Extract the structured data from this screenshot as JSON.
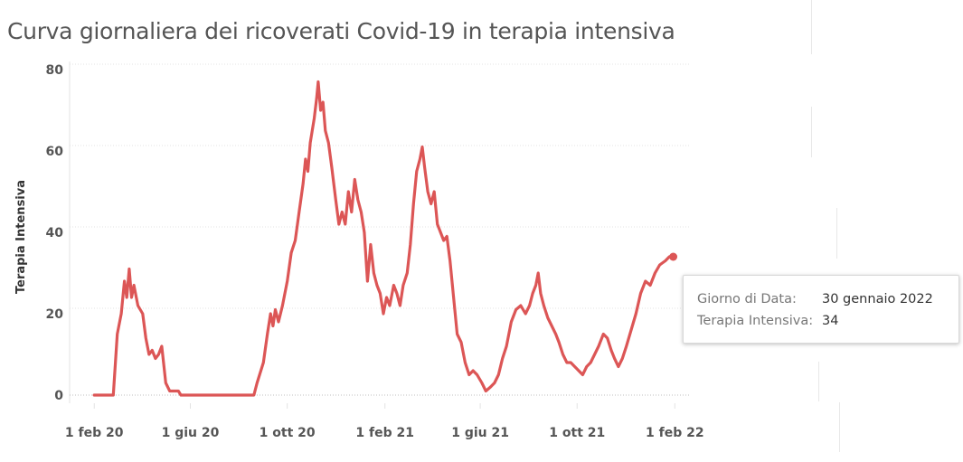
{
  "title": "Curva giornaliera dei ricoverati Covid-19 in terapia intensiva",
  "colors": {
    "line": "#dc5656",
    "grid": "#e3e3e3",
    "baseline": "#bfbfbf"
  },
  "tooltip": {
    "rows": [
      {
        "key": "Giorno di Data:",
        "value": "30 gennaio 2022"
      },
      {
        "key": "Terapia Intensiva:",
        "value": "34"
      }
    ]
  },
  "chart_data": {
    "type": "line",
    "title": "Curva giornaliera dei ricoverati Covid-19 in terapia intensiva",
    "xlabel": "",
    "ylabel": "Terapia Intensiva",
    "ylim": [
      0,
      80
    ],
    "xlim": [
      "2020-01-01",
      "2022-02-20"
    ],
    "yticks": [
      0,
      20,
      40,
      60,
      80
    ],
    "xticks": [
      {
        "date": "2020-02-01",
        "label": "1 feb 20"
      },
      {
        "date": "2020-06-01",
        "label": "1 giu 20"
      },
      {
        "date": "2020-10-01",
        "label": "1 ott 20"
      },
      {
        "date": "2021-02-01",
        "label": "1 feb 21"
      },
      {
        "date": "2021-06-01",
        "label": "1 giu 21"
      },
      {
        "date": "2021-10-01",
        "label": "1 ott 21"
      },
      {
        "date": "2022-02-01",
        "label": "1 feb 22"
      }
    ],
    "grid": true,
    "series": [
      {
        "points": [
          [
            "2020-02-01",
            0
          ],
          [
            "2020-02-20",
            0
          ],
          [
            "2020-02-25",
            0
          ],
          [
            "2020-03-01",
            15
          ],
          [
            "2020-03-06",
            20
          ],
          [
            "2020-03-10",
            28
          ],
          [
            "2020-03-13",
            24
          ],
          [
            "2020-03-16",
            31
          ],
          [
            "2020-03-19",
            24
          ],
          [
            "2020-03-22",
            27
          ],
          [
            "2020-03-27",
            22
          ],
          [
            "2020-04-02",
            20
          ],
          [
            "2020-04-06",
            14
          ],
          [
            "2020-04-10",
            10
          ],
          [
            "2020-04-14",
            11
          ],
          [
            "2020-04-18",
            9
          ],
          [
            "2020-04-22",
            10
          ],
          [
            "2020-04-26",
            12
          ],
          [
            "2020-05-01",
            3
          ],
          [
            "2020-05-06",
            1
          ],
          [
            "2020-05-12",
            1
          ],
          [
            "2020-05-17",
            1
          ],
          [
            "2020-05-20",
            0
          ],
          [
            "2020-06-10",
            0
          ],
          [
            "2020-07-15",
            0
          ],
          [
            "2020-08-15",
            0
          ],
          [
            "2020-08-20",
            0
          ],
          [
            "2020-08-24",
            3
          ],
          [
            "2020-09-01",
            8
          ],
          [
            "2020-09-06",
            15
          ],
          [
            "2020-09-10",
            20
          ],
          [
            "2020-09-13",
            17
          ],
          [
            "2020-09-16",
            21
          ],
          [
            "2020-09-20",
            18
          ],
          [
            "2020-09-25",
            22
          ],
          [
            "2020-10-01",
            28
          ],
          [
            "2020-10-06",
            35
          ],
          [
            "2020-10-11",
            38
          ],
          [
            "2020-10-16",
            45
          ],
          [
            "2020-10-21",
            52
          ],
          [
            "2020-10-24",
            58
          ],
          [
            "2020-10-27",
            55
          ],
          [
            "2020-10-30",
            62
          ],
          [
            "2020-11-04",
            68
          ],
          [
            "2020-11-07",
            73
          ],
          [
            "2020-11-09",
            77
          ],
          [
            "2020-11-12",
            70
          ],
          [
            "2020-11-15",
            72
          ],
          [
            "2020-11-18",
            65
          ],
          [
            "2020-11-22",
            62
          ],
          [
            "2020-11-26",
            56
          ],
          [
            "2020-12-01",
            48
          ],
          [
            "2020-12-05",
            42
          ],
          [
            "2020-12-09",
            45
          ],
          [
            "2020-12-13",
            42
          ],
          [
            "2020-12-17",
            50
          ],
          [
            "2020-12-21",
            45
          ],
          [
            "2020-12-25",
            53
          ],
          [
            "2020-12-29",
            48
          ],
          [
            "2021-01-02",
            45
          ],
          [
            "2021-01-06",
            40
          ],
          [
            "2021-01-10",
            28
          ],
          [
            "2021-01-14",
            37
          ],
          [
            "2021-01-18",
            30
          ],
          [
            "2021-01-22",
            27
          ],
          [
            "2021-01-26",
            25
          ],
          [
            "2021-01-30",
            20
          ],
          [
            "2021-02-03",
            24
          ],
          [
            "2021-02-07",
            22
          ],
          [
            "2021-02-12",
            27
          ],
          [
            "2021-02-16",
            25
          ],
          [
            "2021-02-20",
            22
          ],
          [
            "2021-02-24",
            27
          ],
          [
            "2021-03-01",
            30
          ],
          [
            "2021-03-05",
            37
          ],
          [
            "2021-03-09",
            47
          ],
          [
            "2021-03-13",
            55
          ],
          [
            "2021-03-17",
            58
          ],
          [
            "2021-03-20",
            61
          ],
          [
            "2021-03-23",
            56
          ],
          [
            "2021-03-27",
            50
          ],
          [
            "2021-03-31",
            47
          ],
          [
            "2021-04-04",
            50
          ],
          [
            "2021-04-08",
            42
          ],
          [
            "2021-04-12",
            40
          ],
          [
            "2021-04-16",
            38
          ],
          [
            "2021-04-20",
            39
          ],
          [
            "2021-04-24",
            33
          ],
          [
            "2021-04-28",
            25
          ],
          [
            "2021-05-03",
            15
          ],
          [
            "2021-05-08",
            13
          ],
          [
            "2021-05-13",
            8
          ],
          [
            "2021-05-18",
            5
          ],
          [
            "2021-05-23",
            6
          ],
          [
            "2021-05-28",
            5
          ],
          [
            "2021-06-03",
            3
          ],
          [
            "2021-06-08",
            1
          ],
          [
            "2021-06-14",
            2
          ],
          [
            "2021-06-19",
            3
          ],
          [
            "2021-06-24",
            5
          ],
          [
            "2021-06-29",
            9
          ],
          [
            "2021-07-04",
            12
          ],
          [
            "2021-07-10",
            18
          ],
          [
            "2021-07-16",
            21
          ],
          [
            "2021-07-22",
            22
          ],
          [
            "2021-07-28",
            20
          ],
          [
            "2021-08-02",
            22
          ],
          [
            "2021-08-06",
            25
          ],
          [
            "2021-08-10",
            27
          ],
          [
            "2021-08-13",
            30
          ],
          [
            "2021-08-16",
            25
          ],
          [
            "2021-08-20",
            22
          ],
          [
            "2021-08-25",
            19
          ],
          [
            "2021-08-30",
            17
          ],
          [
            "2021-09-04",
            15
          ],
          [
            "2021-09-08",
            13
          ],
          [
            "2021-09-13",
            10
          ],
          [
            "2021-09-18",
            8
          ],
          [
            "2021-09-23",
            8
          ],
          [
            "2021-09-28",
            7
          ],
          [
            "2021-10-03",
            6
          ],
          [
            "2021-10-08",
            5
          ],
          [
            "2021-10-13",
            7
          ],
          [
            "2021-10-18",
            8
          ],
          [
            "2021-10-23",
            10
          ],
          [
            "2021-10-28",
            12
          ],
          [
            "2021-11-03",
            15
          ],
          [
            "2021-11-08",
            14
          ],
          [
            "2021-11-13",
            11
          ],
          [
            "2021-11-17",
            9
          ],
          [
            "2021-11-22",
            7
          ],
          [
            "2021-11-27",
            9
          ],
          [
            "2021-12-02",
            12
          ],
          [
            "2021-12-08",
            16
          ],
          [
            "2021-12-14",
            20
          ],
          [
            "2021-12-20",
            25
          ],
          [
            "2021-12-26",
            28
          ],
          [
            "2022-01-01",
            27
          ],
          [
            "2022-01-07",
            30
          ],
          [
            "2022-01-13",
            32
          ],
          [
            "2022-01-20",
            33
          ],
          [
            "2022-01-25",
            34
          ],
          [
            "2022-01-30",
            34
          ]
        ]
      }
    ],
    "highlight": {
      "date": "2022-01-30",
      "value": 34
    }
  }
}
